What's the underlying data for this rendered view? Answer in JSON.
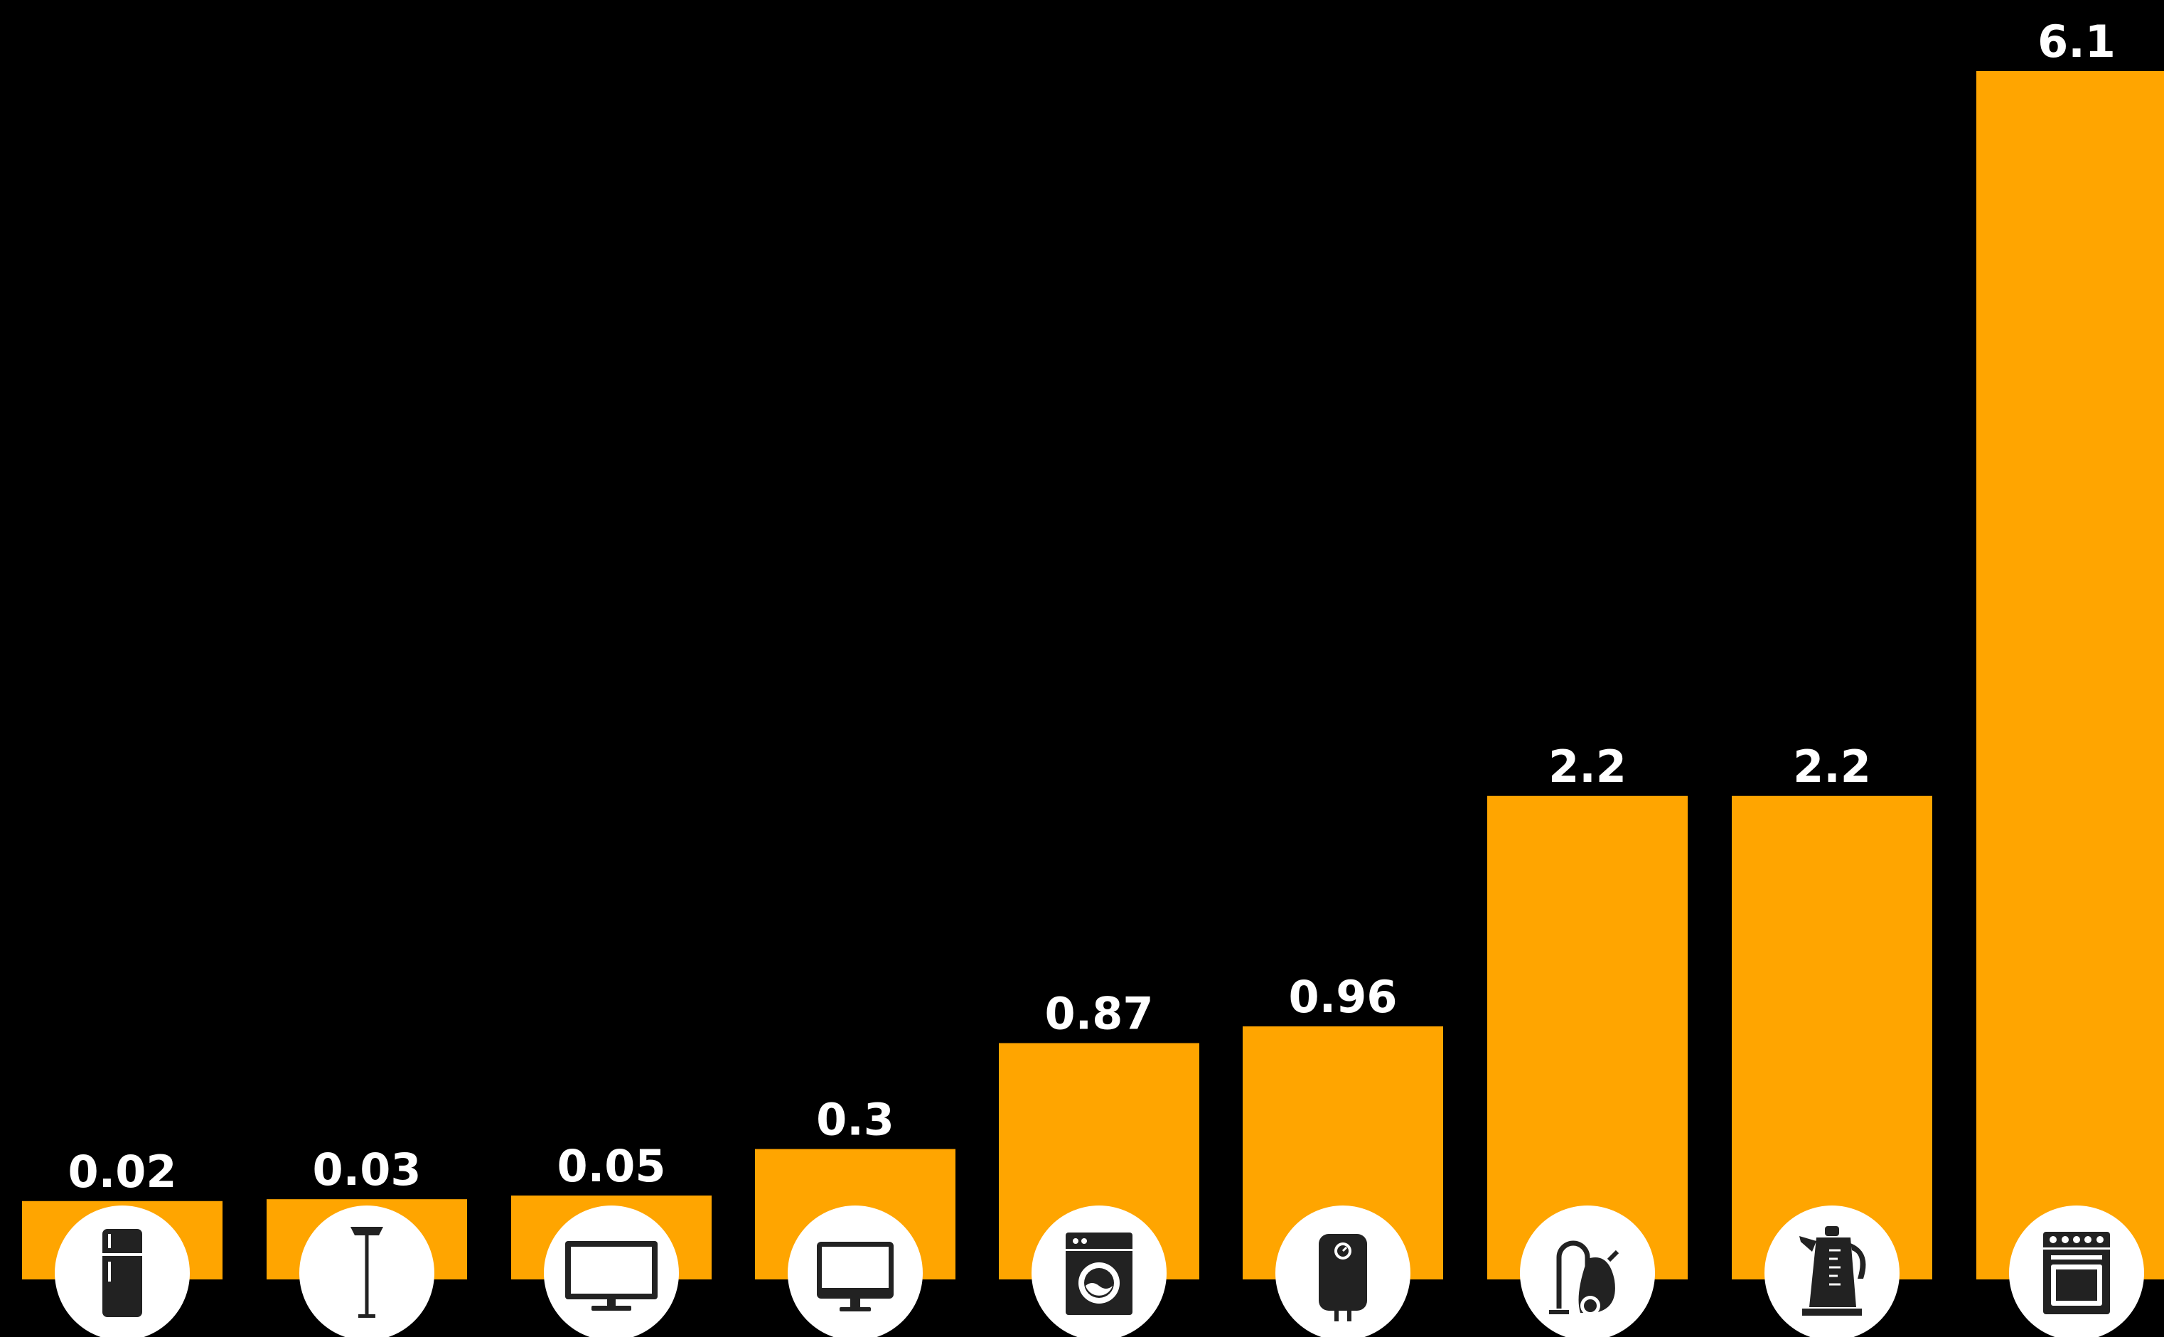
{
  "chart_data": {
    "type": "bar",
    "categories": [
      "fridge-icon",
      "floor-lamp-icon",
      "tv-icon",
      "monitor-icon",
      "washing-machine-icon",
      "water-heater-icon",
      "vacuum-cleaner-icon",
      "kettle-icon",
      "oven-icon"
    ],
    "values": [
      0.02,
      0.03,
      0.05,
      0.3,
      0.87,
      0.96,
      2.2,
      2.2,
      6.1
    ],
    "value_labels": [
      "0.02",
      "0.03",
      "0.05",
      "0.3",
      "0.87",
      "0.96",
      "2.2",
      "2.2",
      "6.1"
    ],
    "ylim": [
      0,
      6.1
    ],
    "grid": false,
    "legend": "none",
    "colors": {
      "background": "#000000",
      "bar": "#FFA500",
      "label": "#ffffff",
      "icon_circle": "#ffffff",
      "icon": "#222222"
    }
  }
}
